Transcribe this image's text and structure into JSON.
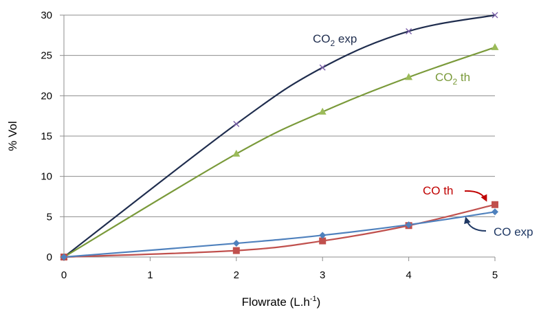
{
  "chart_data": {
    "type": "line",
    "title": "",
    "xlabel": "Flowrate (L.h-1)",
    "ylabel": "% Vol",
    "xlim": [
      0,
      5
    ],
    "ylim": [
      0,
      30
    ],
    "xticks": [
      "0",
      "1",
      "2",
      "3",
      "4",
      "5"
    ],
    "yticks": [
      "0",
      "5",
      "10",
      "15",
      "20",
      "25",
      "30"
    ],
    "grid": "horizontal",
    "legend": "inline labels",
    "series": [
      {
        "name": "CO2 exp",
        "color": "#1f2d4e",
        "marker": "x",
        "x": [
          0,
          2,
          3,
          4,
          5
        ],
        "y": [
          0,
          16.5,
          23.5,
          28,
          30
        ]
      },
      {
        "name": "CO2 th",
        "color": "#7a9a3a",
        "marker": "triangle",
        "x": [
          0,
          2,
          3,
          4,
          5
        ],
        "y": [
          0,
          12.8,
          18,
          22.3,
          26
        ]
      },
      {
        "name": "CO th",
        "color": "#c0504d",
        "marker": "square",
        "x": [
          0,
          2,
          3,
          4,
          5
        ],
        "y": [
          0,
          0.8,
          2,
          3.9,
          6.5
        ]
      },
      {
        "name": "CO exp",
        "color": "#4f81bd",
        "marker": "diamond",
        "x": [
          0,
          2,
          3,
          4,
          5
        ],
        "y": [
          0,
          1.7,
          2.7,
          4,
          5.6
        ]
      }
    ],
    "annotations": [
      {
        "text": "CO",
        "sub": "2",
        "tail": " exp",
        "color": "#1f2d4e",
        "series": 0
      },
      {
        "text": "CO",
        "sub": "2",
        "tail": " th",
        "color": "#7a9a3a",
        "series": 1
      },
      {
        "text": "CO th",
        "color": "#c00000",
        "series": 2
      },
      {
        "text": "CO exp",
        "color": "#1f3864",
        "series": 3
      }
    ],
    "xlabel_parts": {
      "main": "Flowrate (L.h",
      "sup": "-1",
      "tail": ")"
    }
  }
}
